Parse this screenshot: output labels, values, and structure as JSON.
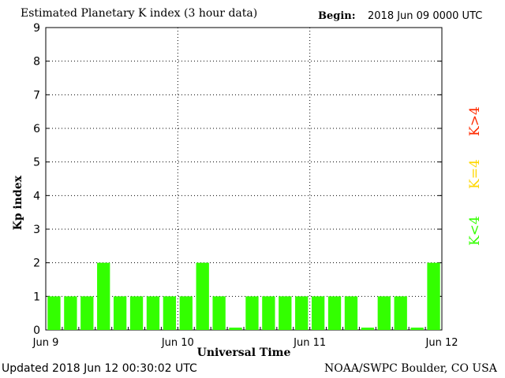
{
  "header": {
    "title": "Estimated Planetary K index (3 hour data)",
    "begin_label": "Begin:",
    "begin_value": "2018 Jun 09 0000 UTC"
  },
  "footer": {
    "updated": "Updated 2018 Jun 12 00:30:02 UTC",
    "credit": "NOAA/SWPC Boulder, CO USA"
  },
  "legend": {
    "high": {
      "label": "K>4",
      "color": "#ff2a00"
    },
    "equal": {
      "label": "K=4",
      "color": "#ffd700"
    },
    "low": {
      "label": "K<4",
      "color": "#33ff00"
    }
  },
  "chart_data": {
    "type": "bar",
    "title": "Estimated Planetary K index (3 hour data)",
    "xlabel": "Universal Time",
    "ylabel": "Kp index",
    "ylim": [
      0,
      9
    ],
    "yticks": [
      0,
      1,
      2,
      3,
      4,
      5,
      6,
      7,
      8,
      9
    ],
    "xticks": [
      "Jun 9",
      "Jun 10",
      "Jun 11",
      "Jun 12"
    ],
    "grid": true,
    "bar_color": "#33ff00",
    "values": [
      1,
      1,
      1,
      2,
      1,
      1,
      1,
      1,
      1,
      2,
      1,
      0,
      1,
      1,
      1,
      1,
      1,
      1,
      1,
      0,
      1,
      1,
      0,
      2
    ]
  }
}
